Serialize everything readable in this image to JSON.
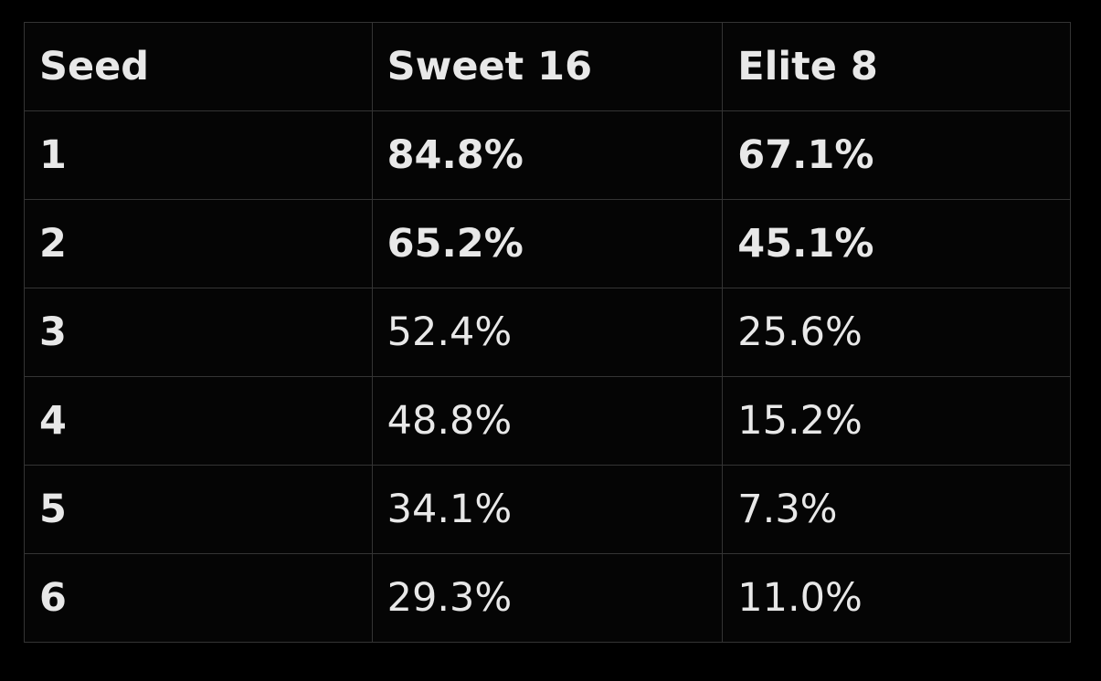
{
  "table": {
    "header": [
      "Seed",
      "Sweet 16",
      "Elite 8"
    ],
    "rows": [
      [
        "1",
        "84.8%",
        "67.1%"
      ],
      [
        "2",
        "65.2%",
        "45.1%"
      ],
      [
        "3",
        "52.4%",
        "25.6%"
      ],
      [
        "4",
        "48.8%",
        "15.2%"
      ],
      [
        "5",
        "34.1%",
        "7.3%"
      ],
      [
        "6",
        "29.3%",
        "11.0%"
      ]
    ]
  }
}
